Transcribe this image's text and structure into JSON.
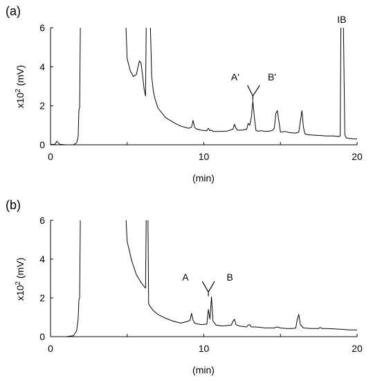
{
  "chart_data": [
    {
      "panel": "(a)",
      "type": "line",
      "xlabel": "(min)",
      "ylabel_base": "x10",
      "ylabel_sup": "2",
      "ylabel_unit": " (mV)",
      "xlim": [
        0,
        20
      ],
      "ylim": [
        0,
        6
      ],
      "xticks": [
        0,
        10,
        20
      ],
      "yticks": [
        0,
        2,
        4,
        6
      ],
      "x": [
        0,
        0.2,
        0.3,
        0.4,
        0.6,
        1.0,
        1.5,
        1.7,
        1.8,
        1.85,
        1.9,
        1.95,
        2.0,
        2.05,
        2.1,
        2.2,
        2.5,
        3.0,
        4.0,
        4.9,
        5.0,
        5.2,
        5.4,
        5.6,
        5.8,
        5.9,
        6.0,
        6.1,
        6.2,
        6.25,
        6.3,
        6.35,
        6.4,
        6.45,
        6.5,
        6.6,
        6.7,
        6.8,
        7.0,
        7.5,
        8.0,
        8.5,
        9.0,
        9.2,
        9.3,
        9.4,
        9.5,
        9.8,
        10.2,
        10.3,
        10.4,
        10.5,
        10.6,
        11.0,
        11.5,
        11.9,
        12.0,
        12.1,
        12.2,
        12.5,
        12.8,
        12.9,
        13.0,
        13.1,
        13.2,
        13.3,
        13.4,
        13.5,
        13.8,
        14.0,
        14.3,
        14.5,
        14.6,
        14.7,
        14.8,
        15.0,
        15.3,
        15.6,
        16.0,
        16.2,
        16.3,
        16.4,
        16.5,
        16.6,
        16.8,
        17.0,
        17.5,
        18.0,
        18.5,
        18.8,
        18.9,
        18.95,
        19.0,
        19.05,
        19.1,
        19.2,
        19.3,
        19.5,
        19.8,
        20.0
      ],
      "y": [
        0.02,
        0.02,
        0.02,
        0.18,
        0.03,
        0.0,
        0.0,
        0.1,
        0.4,
        1.8,
        1.9,
        6.5,
        6.5,
        6.5,
        6.5,
        6.5,
        6.5,
        6.5,
        6.5,
        6.5,
        4.4,
        3.8,
        3.5,
        3.6,
        4.3,
        4.2,
        3.6,
        2.9,
        2.5,
        6.5,
        6.5,
        6.5,
        6.5,
        6.5,
        6.5,
        3.5,
        2.8,
        2.4,
        1.9,
        1.4,
        1.15,
        0.95,
        0.85,
        0.9,
        1.25,
        0.9,
        0.82,
        0.75,
        0.72,
        0.85,
        0.72,
        0.75,
        0.68,
        0.68,
        0.7,
        0.8,
        1.05,
        0.85,
        0.75,
        0.75,
        0.8,
        1.1,
        1.0,
        1.4,
        2.25,
        1.4,
        0.75,
        0.7,
        0.72,
        0.68,
        0.7,
        0.75,
        0.85,
        1.6,
        1.75,
        0.65,
        0.68,
        0.62,
        0.6,
        0.65,
        1.2,
        1.75,
        0.9,
        0.55,
        0.52,
        0.5,
        0.48,
        0.45,
        0.45,
        0.42,
        0.45,
        6.5,
        6.5,
        6.5,
        6.5,
        0.5,
        0.35,
        0.33,
        0.3,
        0.3
      ],
      "annotations": [
        {
          "label": "A'",
          "x": 12.05,
          "y": 3.3
        },
        {
          "label": "B'",
          "x": 14.45,
          "y": 3.3
        },
        {
          "label": "IB",
          "x": 19.0,
          "y": 6.25
        }
      ],
      "bracket": {
        "x_left": 12.85,
        "x_mid": 13.2,
        "x_right": 13.65,
        "y_top": 3.05,
        "y_bottom": 2.5
      }
    },
    {
      "panel": "(b)",
      "type": "line",
      "xlabel": "(min)",
      "ylabel_base": "x10",
      "ylabel_sup": "2",
      "ylabel_unit": " (mV)",
      "xlim": [
        0,
        20
      ],
      "ylim": [
        0,
        6
      ],
      "xticks": [
        0,
        10,
        20
      ],
      "yticks": [
        0,
        2,
        4,
        6
      ],
      "x": [
        0,
        0.3,
        1.0,
        1.5,
        1.7,
        1.8,
        1.85,
        1.9,
        1.95,
        2.0,
        2.05,
        2.1,
        2.3,
        3.0,
        4.0,
        4.9,
        5.0,
        5.3,
        5.6,
        5.9,
        6.0,
        6.1,
        6.2,
        6.25,
        6.3,
        6.35,
        6.4,
        6.5,
        6.7,
        7.0,
        7.5,
        8.0,
        8.5,
        9.0,
        9.1,
        9.2,
        9.3,
        9.4,
        9.6,
        9.9,
        10.2,
        10.3,
        10.4,
        10.5,
        10.6,
        10.8,
        11.2,
        11.8,
        11.9,
        12.0,
        12.1,
        12.3,
        12.8,
        12.9,
        13.0,
        13.1,
        13.4,
        14.0,
        14.6,
        14.8,
        15.0,
        15.4,
        15.8,
        16.0,
        16.1,
        16.2,
        16.3,
        16.5,
        17.0,
        17.5,
        17.6,
        17.7,
        18.0,
        18.5,
        19.0,
        19.5,
        20.0
      ],
      "y": [
        0.0,
        0.0,
        0.0,
        0.05,
        0.3,
        0.9,
        1.9,
        2.0,
        6.5,
        6.5,
        6.5,
        6.5,
        6.5,
        6.5,
        6.5,
        6.5,
        4.9,
        3.9,
        3.2,
        2.8,
        2.7,
        2.6,
        2.5,
        6.5,
        6.5,
        6.5,
        1.7,
        1.55,
        1.35,
        1.15,
        0.95,
        0.8,
        0.7,
        0.8,
        0.85,
        1.2,
        0.85,
        0.7,
        0.65,
        0.62,
        0.65,
        1.4,
        0.9,
        2.05,
        0.8,
        0.6,
        0.55,
        0.6,
        0.8,
        0.9,
        0.62,
        0.55,
        0.5,
        0.6,
        0.62,
        0.5,
        0.5,
        0.45,
        0.45,
        0.5,
        0.45,
        0.42,
        0.42,
        0.45,
        0.9,
        1.15,
        0.62,
        0.45,
        0.42,
        0.42,
        0.48,
        0.42,
        0.42,
        0.4,
        0.38,
        0.35,
        0.35
      ],
      "annotations": [
        {
          "label": "A",
          "x": 8.8,
          "y": 2.9
        },
        {
          "label": "B",
          "x": 11.7,
          "y": 2.9
        }
      ],
      "bracket": {
        "x_left": 9.9,
        "x_mid": 10.3,
        "x_right": 10.7,
        "y_top": 2.85,
        "y_bottom": 2.3
      }
    }
  ]
}
